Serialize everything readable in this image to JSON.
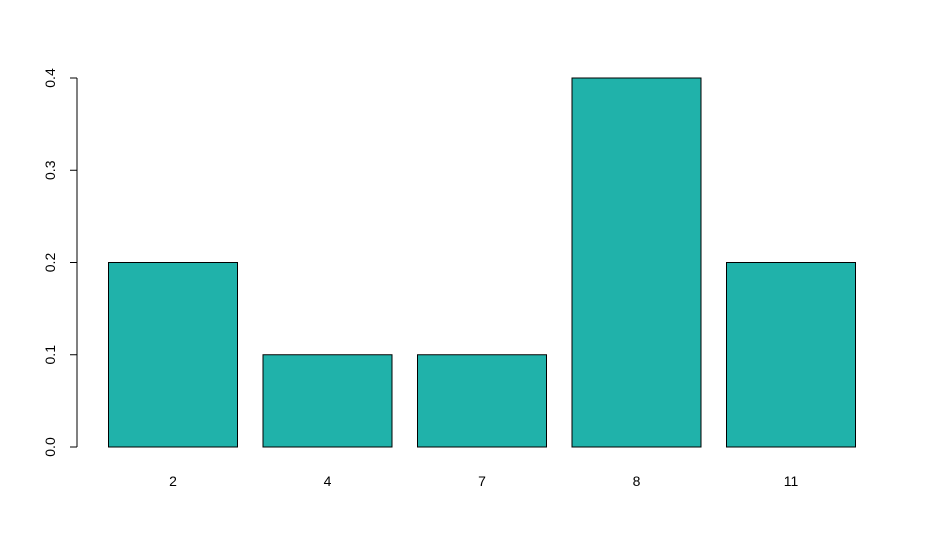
{
  "chart_data": {
    "type": "bar",
    "categories": [
      "2",
      "4",
      "7",
      "8",
      "11"
    ],
    "values": [
      0.2,
      0.1,
      0.1,
      0.4,
      0.2
    ],
    "title": "",
    "xlabel": "",
    "ylabel": "",
    "ylim": [
      0,
      0.4
    ],
    "yticks": [
      0.0,
      0.1,
      0.2,
      0.3,
      0.4
    ],
    "ytick_labels": [
      "0.0",
      "0.1",
      "0.2",
      "0.3",
      "0.4"
    ],
    "grid": false,
    "legend": "none",
    "colors": {
      "bar_fill": "#20B2AA",
      "bar_stroke": "#000000",
      "axis": "#000000",
      "background": "#FFFFFF"
    }
  }
}
